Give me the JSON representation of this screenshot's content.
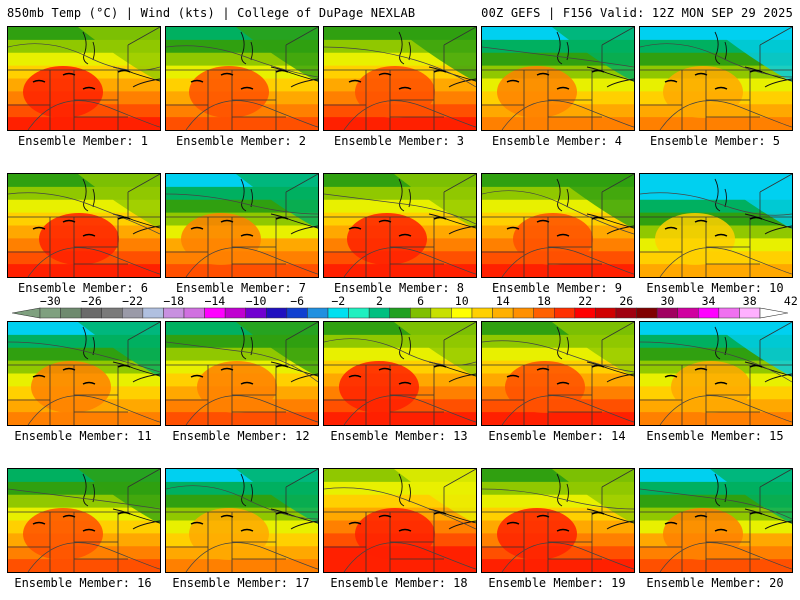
{
  "header": {
    "left": "850mb Temp (°C) | Wind (kts) | College of DuPage NEXLAB",
    "right": "00Z GEFS | F156 Valid: 12Z MON SEP 29 2025"
  },
  "colorbar": {
    "tick_labels": [
      "−30",
      "−26",
      "−22",
      "−18",
      "−14",
      "−10",
      "−6",
      "−2",
      "2",
      "6",
      "10",
      "14",
      "18",
      "22",
      "26",
      "30",
      "34",
      "38",
      "42"
    ],
    "colors": [
      "#7fa07f",
      "#6e8a6e",
      "#6a6a6a",
      "#7a7a7a",
      "#9a9aa8",
      "#b0c0e0",
      "#c890e0",
      "#d070e0",
      "#ff00ff",
      "#c000d0",
      "#7000d0",
      "#2010c0",
      "#1040d0",
      "#2090e0",
      "#00e0f0",
      "#20f0c0",
      "#00c080",
      "#20a020",
      "#80c000",
      "#c8e000",
      "#ffff00",
      "#ffd000",
      "#ffb000",
      "#ff9000",
      "#ff6000",
      "#ff3000",
      "#ff0000",
      "#d00000",
      "#a00010",
      "#800000",
      "#a00060",
      "#d000a0",
      "#ff00ff",
      "#f070f0",
      "#ffb0ff"
    ]
  },
  "members": [
    {
      "label": "Ensemble Member: 1",
      "warm": 0.78
    },
    {
      "label": "Ensemble Member: 2",
      "warm": 0.65
    },
    {
      "label": "Ensemble Member: 3",
      "warm": 0.72
    },
    {
      "label": "Ensemble Member: 4",
      "warm": 0.55
    },
    {
      "label": "Ensemble Member: 5",
      "warm": 0.5
    },
    {
      "label": "Ensemble Member: 6",
      "warm": 0.8
    },
    {
      "label": "Ensemble Member: 7",
      "warm": 0.6
    },
    {
      "label": "Ensemble Member: 8",
      "warm": 0.75
    },
    {
      "label": "Ensemble Member: 9",
      "warm": 0.72
    },
    {
      "label": "Ensemble Member: 10",
      "warm": 0.4
    },
    {
      "label": "Ensemble Member: 11",
      "warm": 0.55
    },
    {
      "label": "Ensemble Member: 12",
      "warm": 0.62
    },
    {
      "label": "Ensemble Member: 13",
      "warm": 0.78
    },
    {
      "label": "Ensemble Member: 14",
      "warm": 0.74
    },
    {
      "label": "Ensemble Member: 15",
      "warm": 0.5
    },
    {
      "label": "Ensemble Member: 16",
      "warm": 0.66
    },
    {
      "label": "Ensemble Member: 17",
      "warm": 0.52
    },
    {
      "label": "Ensemble Member: 18",
      "warm": 0.85
    },
    {
      "label": "Ensemble Member: 19",
      "warm": 0.8
    },
    {
      "label": "Ensemble Member: 20",
      "warm": 0.6
    }
  ]
}
